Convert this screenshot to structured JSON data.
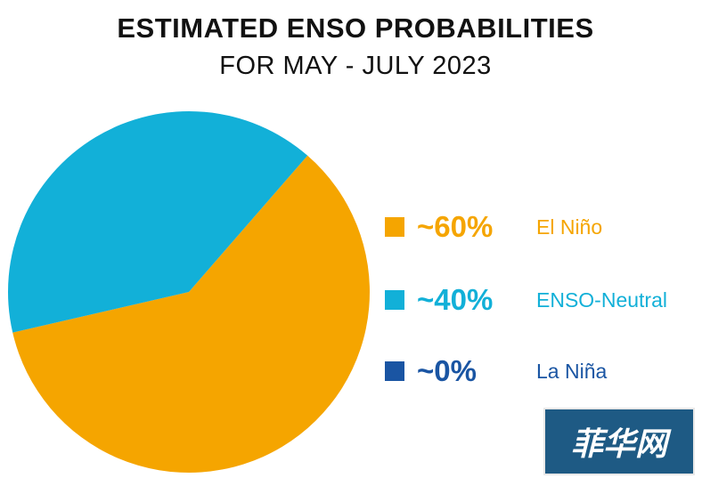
{
  "chart_data": {
    "type": "pie",
    "title": "ESTIMATED ENSO PROBABILITIES",
    "subtitle": "FOR MAY - JULY 2023",
    "slices": [
      {
        "label": "El Niño",
        "value": 60,
        "display": "~60%",
        "color": "#f5a500"
      },
      {
        "label": "ENSO-Neutral",
        "value": 40,
        "display": "~40%",
        "color": "#12b0d8"
      },
      {
        "label": "La Niña",
        "value": 0,
        "display": "~0%",
        "color": "#1a55a3"
      }
    ],
    "legend_position": "right"
  },
  "watermark": {
    "text": "菲华网"
  }
}
